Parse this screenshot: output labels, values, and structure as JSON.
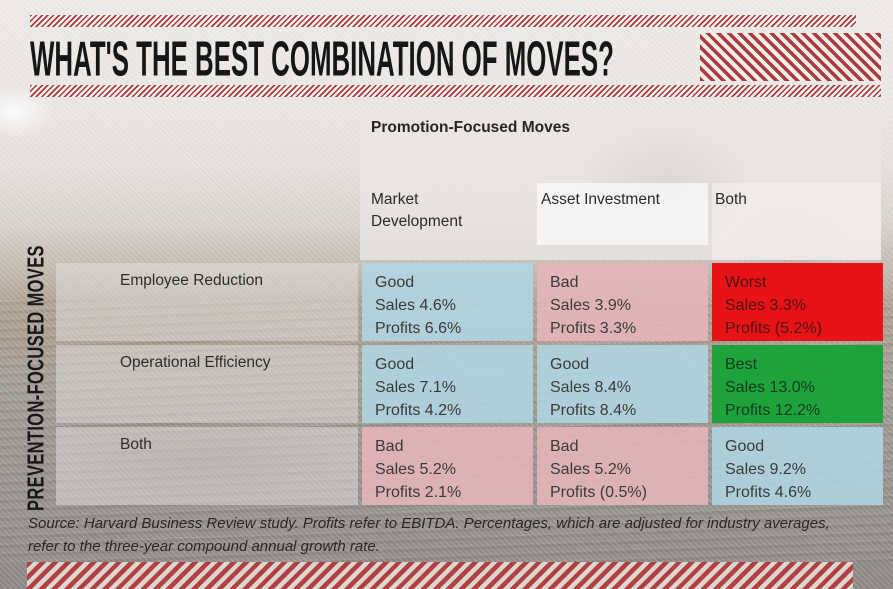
{
  "slide": {
    "title": "WHAT'S THE BEST COMBINATION OF MOVES?",
    "source_note": "Source: Harvard Business Review study. Profits refer to EBITDA. Percentages, which are adjusted for industry averages, refer to the three-year compound annual growth rate."
  },
  "chart_data": {
    "type": "table",
    "title": "What's the best combination of moves?",
    "column_axis_title": "Promotion-Focused Moves",
    "row_axis_title": "PREVENTION-FOCUSED MOVES",
    "columns": [
      "Market Development",
      "Asset Investment",
      "Both"
    ],
    "rows": [
      {
        "label": "Employee Reduction",
        "cells": [
          {
            "rating": "Good",
            "sales": "Sales 4.6%",
            "profits": "Profits 6.6%",
            "sales_pct": 4.6,
            "profits_pct": 6.6,
            "tone": "good"
          },
          {
            "rating": "Bad",
            "sales": "Sales 3.9%",
            "profits": "Profits 3.3%",
            "sales_pct": 3.9,
            "profits_pct": 3.3,
            "tone": "bad"
          },
          {
            "rating": "Worst",
            "sales": "Sales 3.3%",
            "profits": "Profits (5.2%)",
            "sales_pct": 3.3,
            "profits_pct": -5.2,
            "tone": "worst"
          }
        ]
      },
      {
        "label": "Operational Efficiency",
        "cells": [
          {
            "rating": "Good",
            "sales": "Sales 7.1%",
            "profits": "Profits 4.2%",
            "sales_pct": 7.1,
            "profits_pct": 4.2,
            "tone": "good"
          },
          {
            "rating": "Good",
            "sales": "Sales 8.4%",
            "profits": "Profits 8.4%",
            "sales_pct": 8.4,
            "profits_pct": 8.4,
            "tone": "good"
          },
          {
            "rating": "Best",
            "sales": "Sales 13.0%",
            "profits": "Profits 12.2%",
            "sales_pct": 13.0,
            "profits_pct": 12.2,
            "tone": "best"
          }
        ]
      },
      {
        "label": "Both",
        "cells": [
          {
            "rating": "Bad",
            "sales": "Sales 5.2%",
            "profits": "Profits 2.1%",
            "sales_pct": 5.2,
            "profits_pct": 2.1,
            "tone": "bad"
          },
          {
            "rating": "Bad",
            "sales": "Sales 5.2%",
            "profits": "Profits (0.5%)",
            "sales_pct": 5.2,
            "profits_pct": -0.5,
            "tone": "bad"
          },
          {
            "rating": "Good",
            "sales": "Sales 9.2%",
            "profits": "Profits 4.6%",
            "sales_pct": 9.2,
            "profits_pct": 4.6,
            "tone": "good"
          }
        ]
      }
    ],
    "notes": "Percentages are three-year compound annual growth rates adjusted for industry averages; profits refer to EBITDA."
  },
  "colors": {
    "stripe_red": "#a93a3c",
    "title_text": "#161616",
    "cell_tones": {
      "good": {
        "bg": "rgba(176,215,229,0.85)",
        "text": "#3a3a3a"
      },
      "bad": {
        "bg": "rgba(231,182,186,0.85)",
        "text": "#3a3a3a"
      },
      "worst": {
        "bg": "#e71317",
        "text": "#4d1413"
      },
      "best": {
        "bg": "#1ea23c",
        "text": "#143a1f"
      }
    }
  }
}
